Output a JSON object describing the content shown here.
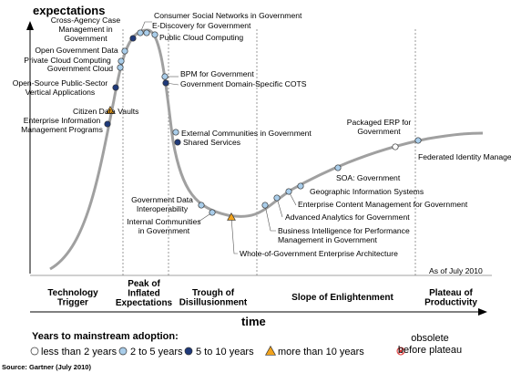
{
  "axes": {
    "y_title": "expectations",
    "x_title": "time"
  },
  "as_of": "As of July 2010",
  "source": "Source: Gartner (July 2010)",
  "phases": [
    {
      "lines": [
        "Technology",
        "Trigger"
      ]
    },
    {
      "lines": [
        "Peak of",
        "Inflated",
        "Expectations"
      ]
    },
    {
      "lines": [
        "Trough of",
        "Disillusionment"
      ]
    },
    {
      "lines": [
        "Slope of Enlightenment"
      ]
    },
    {
      "lines": [
        "Plateau of",
        "Productivity"
      ]
    }
  ],
  "categories": {
    "lt2": {
      "label": "less than 2 years",
      "color": "#ffffff",
      "shape": "circle"
    },
    "2to5": {
      "label": "2 to 5 years",
      "color": "#a9cdea",
      "shape": "circle"
    },
    "5to10": {
      "label": "5 to 10 years",
      "color": "#1f3a7a",
      "shape": "circle"
    },
    "gt10": {
      "label": "more than 10 years",
      "color": "#f2a31c",
      "shape": "triangle"
    },
    "obsolete": {
      "label": [
        "obsolete",
        "before plateau"
      ],
      "color": "#e03030",
      "shape": "cross-circle"
    }
  },
  "legend": {
    "title": "Years to mainstream adoption:",
    "order": [
      "lt2",
      "2to5",
      "5to10",
      "gt10",
      "obsolete"
    ]
  },
  "technologies": [
    {
      "name": [
        "Enterprise Information",
        "Management Programs"
      ],
      "category": "5to10"
    },
    {
      "name": [
        "Citizen Data Vaults"
      ],
      "category": "gt10"
    },
    {
      "name": [
        "Open-Source Public-Sector",
        "Vertical Applications"
      ],
      "category": "5to10"
    },
    {
      "name": [
        "Government Cloud"
      ],
      "category": "2to5"
    },
    {
      "name": [
        "Private Cloud Computing"
      ],
      "category": "2to5"
    },
    {
      "name": [
        "Open Government Data"
      ],
      "category": "2to5"
    },
    {
      "name": [
        "Cross-Agency Case",
        "Management in",
        "Government"
      ],
      "category": "5to10"
    },
    {
      "name": [
        "Consumer Social Networks in Government"
      ],
      "category": "2to5"
    },
    {
      "name": [
        "E-Discovery for Government"
      ],
      "category": "2to5"
    },
    {
      "name": [
        "Public Cloud Computing"
      ],
      "category": "2to5"
    },
    {
      "name": [
        "BPM for Government"
      ],
      "category": "2to5"
    },
    {
      "name": [
        "Government Domain-Specific COTS"
      ],
      "category": "5to10"
    },
    {
      "name": [
        "External Communities in Government"
      ],
      "category": "2to5"
    },
    {
      "name": [
        "Shared Services"
      ],
      "category": "5to10"
    },
    {
      "name": [
        "Government Data",
        "Interoperability"
      ],
      "category": "2to5"
    },
    {
      "name": [
        "Internal Communities",
        "in Government"
      ],
      "category": "2to5"
    },
    {
      "name": [
        "Whole-of-Government Enterprise Architecture"
      ],
      "category": "gt10"
    },
    {
      "name": [
        "Business Intelligence for Performance",
        "Management  in Government"
      ],
      "category": "2to5"
    },
    {
      "name": [
        "Advanced Analytics for Government"
      ],
      "category": "2to5"
    },
    {
      "name": [
        "Enterprise Content Management for Government"
      ],
      "category": "2to5"
    },
    {
      "name": [
        "Geographic Information Systems"
      ],
      "category": "2to5"
    },
    {
      "name": [
        "SOA: Government"
      ],
      "category": "2to5"
    },
    {
      "name": [
        "Packaged ERP for",
        "Government"
      ],
      "category": "lt2"
    },
    {
      "name": [
        "Federated Identity Management"
      ],
      "category": "2to5"
    }
  ]
}
